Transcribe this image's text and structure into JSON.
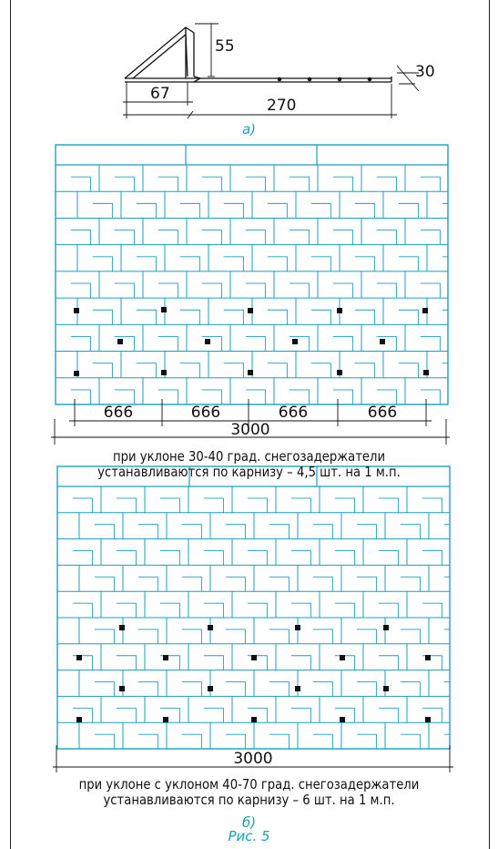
{
  "bracket": {
    "dim_height": "55",
    "dim_base": "67",
    "dim_length": "270",
    "dim_width": "30",
    "label": "а)"
  },
  "panel1": {
    "spacing_labels": [
      "666",
      "666",
      "666",
      "666"
    ],
    "total_label": "3000",
    "caption_line1": "при уклоне 30-40 град. снегозадержатели",
    "caption_line2": "устанавливаются по карнизу – 4,5 шт. на 1 м.п."
  },
  "panel2": {
    "total_label": "3000",
    "caption_line1": "при уклоне с уклоном 40-70 град. снегозадержатели",
    "caption_line2": "устанавливаются по карнизу – 6 шт. на 1 м.п."
  },
  "label_b": "б)",
  "figure_caption": "Рис. 5",
  "colors": {
    "tile": "#1a9fc0",
    "line": "#111111",
    "label": "#1a9fc0"
  }
}
